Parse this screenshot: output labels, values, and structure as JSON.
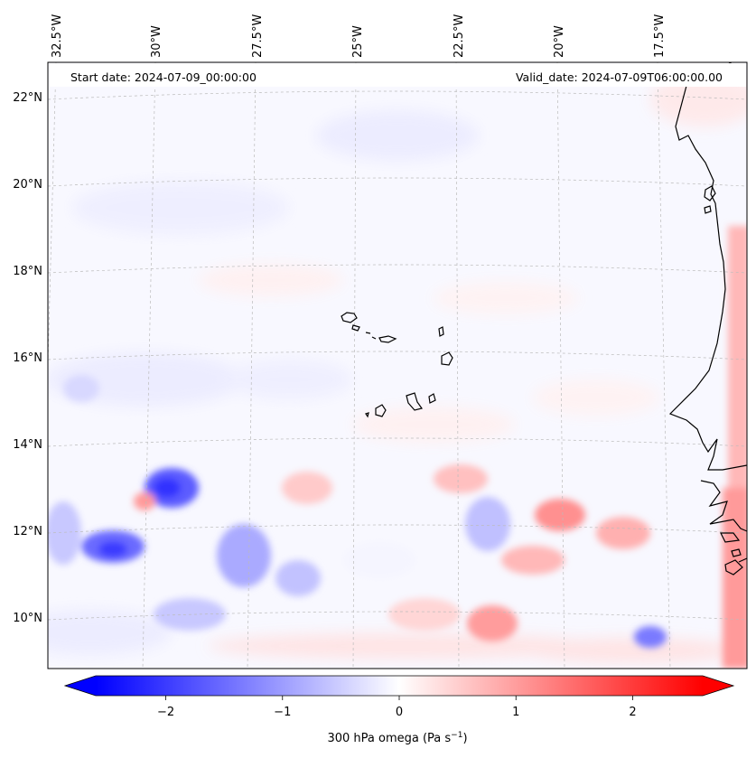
{
  "header": {
    "start_date": "Start date: 2024-07-09_00:00:00",
    "valid_date": "Valid_date: 2024-07-09T06:00:00.00"
  },
  "longitude_labels": [
    "32.5°W",
    "30°W",
    "27.5°W",
    "25°W",
    "22.5°W",
    "20°W",
    "17.5°W"
  ],
  "latitude_labels": [
    "22°N",
    "20°N",
    "18°N",
    "16°N",
    "14°N",
    "12°N",
    "10°N"
  ],
  "colorbar": {
    "label": "300 hPa omega (Pa s",
    "label_superscript": "−1",
    "label_suffix": ")",
    "ticks": [
      "−2",
      "−1",
      "0",
      "1",
      "2"
    ],
    "tick_values": [
      -2,
      -1,
      0,
      1,
      2
    ],
    "range": [
      -2.6,
      2.6
    ],
    "color_negative": "#0000ff",
    "color_zero": "#ffffff",
    "color_positive": "#ff0000"
  },
  "coastline_color": "#000000",
  "gridline_color": "#bbbbbb",
  "features": [
    {
      "name": "strong-ascent-near-13n-30w",
      "value": -2.0
    },
    {
      "name": "strong-ascent-near-11.5n-31.5w",
      "value": -2.1
    },
    {
      "name": "ascent-near-12n-27w",
      "value": -1.2
    },
    {
      "name": "subsidence-along-african-coast",
      "value": 1.0
    },
    {
      "name": "subsidence-near-12.5n-19w",
      "value": 1.1
    },
    {
      "name": "subsidence-near-9.5n-22w",
      "value": 1.0
    }
  ]
}
